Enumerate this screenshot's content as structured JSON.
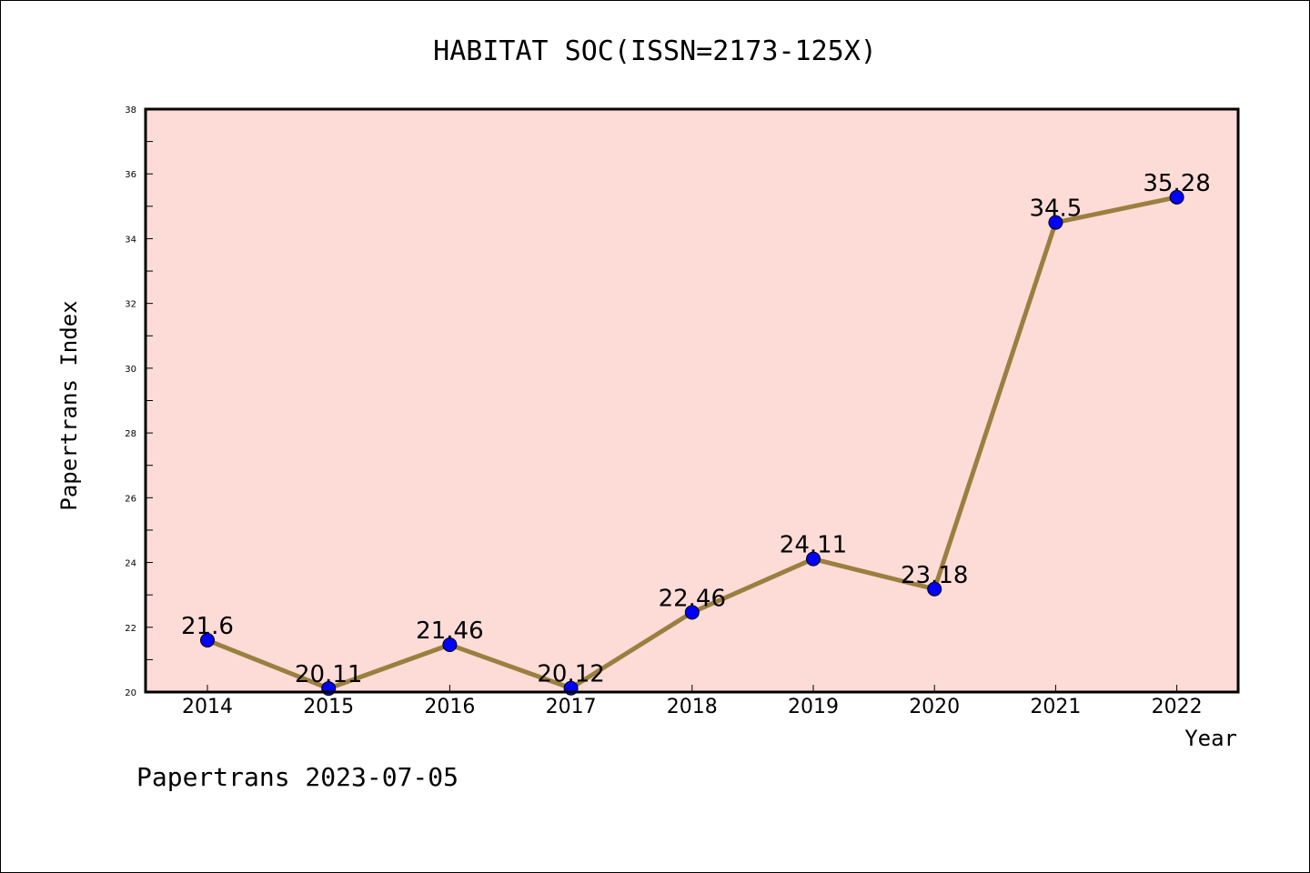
{
  "chart_data": {
    "type": "line",
    "title": "HABITAT SOC(ISSN=2173-125X)",
    "xlabel": "Year",
    "ylabel": "Papertrans Index",
    "categories": [
      "2014",
      "2015",
      "2016",
      "2017",
      "2018",
      "2019",
      "2020",
      "2021",
      "2022"
    ],
    "series": [
      {
        "values": [
          21.6,
          20.11,
          21.46,
          20.12,
          22.46,
          24.11,
          23.18,
          34.5,
          35.28
        ],
        "labels": [
          "21.6",
          "20.11",
          "21.46",
          "20.12",
          "22.46",
          "24.11",
          "23.18",
          "34.5",
          "35.28"
        ],
        "line_color": "#9b7f3f",
        "marker_color": "#0000ff"
      }
    ],
    "ylim": [
      20,
      38
    ],
    "yticks": [
      "20",
      "22",
      "24",
      "26",
      "28",
      "30",
      "32",
      "34",
      "36",
      "38"
    ],
    "plot_background": "#fddcd8",
    "grid": false,
    "footer": "Papertrans 2023-07-05"
  }
}
